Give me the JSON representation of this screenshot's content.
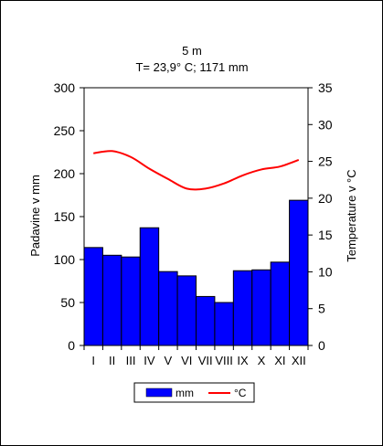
{
  "chart_data": {
    "type": "bar",
    "title": "5 m",
    "subtitle": "T= 23,9° C; 1171 mm",
    "categories": [
      "I",
      "II",
      "III",
      "IV",
      "V",
      "VI",
      "VII",
      "VIII",
      "IX",
      "X",
      "XI",
      "XII"
    ],
    "ylabel_left": "Padavine v mm",
    "ylabel_right": "Temperature v °C",
    "ylim_left": [
      0,
      300
    ],
    "ylim_right": [
      0,
      35
    ],
    "yticks_left": [
      "0",
      "50",
      "100",
      "150",
      "200",
      "250",
      "300"
    ],
    "yticks_right": [
      "0",
      "5",
      "10",
      "15",
      "20",
      "25",
      "30",
      "35"
    ],
    "series": [
      {
        "name": "mm",
        "type": "bar",
        "axis": "left",
        "color": "#0000ff",
        "values": [
          114,
          105,
          103,
          137,
          86,
          81,
          57,
          50,
          87,
          88,
          97,
          169
        ]
      },
      {
        "name": "°C",
        "type": "line",
        "axis": "right",
        "color": "#ff0000",
        "values": [
          26.1,
          26.4,
          25.6,
          24.0,
          22.6,
          21.3,
          21.3,
          22.0,
          23.1,
          23.9,
          24.3,
          25.2
        ]
      }
    ],
    "legend_position": "bottom",
    "grid": false
  }
}
